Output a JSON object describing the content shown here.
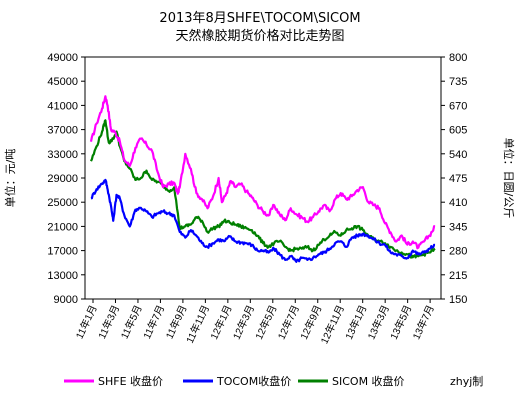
{
  "chart_data": {
    "type": "line",
    "title": "2013年8月SHFE\\TOCOM\\SICOM",
    "subtitle": "天然橡胶期货价格对比走势图",
    "ylabel_left": "单位：元/吨",
    "ylabel_right": "单位：日圆/公斤",
    "ylim_left": [
      9000,
      49000
    ],
    "yticks_left": [
      "49000",
      "45000",
      "41000",
      "37000",
      "33000",
      "29000",
      "25000",
      "21000",
      "17000",
      "13000",
      "9000"
    ],
    "ylim_right": [
      150,
      800
    ],
    "yticks_right": [
      "800",
      "735",
      "670",
      "605",
      "540",
      "475",
      "410",
      "345",
      "280",
      "215",
      "150"
    ],
    "x_tick_labels": [
      "11年1月",
      "11年3月",
      "11年5月",
      "11年7月",
      "11年9月",
      "11年11月",
      "12年1月",
      "12年3月",
      "12年5月",
      "12年7月",
      "12年9月",
      "12年11月",
      "13年1月",
      "13年3月",
      "13年5月",
      "13年7月"
    ],
    "grid": false,
    "legend_position": "bottom",
    "series": [
      {
        "name": "SHFE 收盘价",
        "axis": "left",
        "color": "#ff00ff",
        "x": [
          0,
          0.5,
          1.0,
          1.3,
          1.5,
          1.8,
          2.2,
          2.6,
          3.0,
          3.5,
          4.0,
          4.5,
          5.0,
          5.5,
          6.0,
          6.5,
          7.0,
          7.5,
          7.8,
          8.0,
          8.5,
          9.0,
          9.5,
          10.0,
          10.5,
          11.0,
          11.5,
          11.8,
          12.2,
          12.6,
          13.0,
          13.5,
          14.0,
          14.5,
          15.0,
          15.5,
          16.0,
          16.5,
          17.0,
          17.5,
          18.0,
          18.5,
          19.0,
          19.5,
          20.0,
          20.5,
          21.0,
          21.5,
          22.0,
          22.5,
          23.0,
          23.5,
          24.0,
          24.5,
          25.0,
          25.5,
          26.0,
          26.5,
          27.0,
          27.5,
          28.0,
          28.5,
          29.0,
          29.5,
          30.0,
          30.5,
          31.0
        ],
        "values": [
          35000,
          38000,
          40500,
          42500,
          41000,
          37000,
          36500,
          35000,
          32000,
          31000,
          34000,
          35500,
          34500,
          33500,
          30000,
          27500,
          28000,
          28200,
          26500,
          27500,
          33000,
          30500,
          26500,
          25500,
          24000,
          26000,
          29000,
          25000,
          26500,
          28500,
          27500,
          28000,
          26800,
          25800,
          24500,
          23500,
          22800,
          24500,
          23000,
          22000,
          24000,
          23000,
          22500,
          21800,
          22500,
          23500,
          24500,
          23500,
          25500,
          26500,
          25500,
          26000,
          27000,
          27500,
          25000,
          24500,
          24000,
          21500,
          20000,
          18500,
          19500,
          18000,
          18500,
          17500,
          18500,
          19500,
          21000
        ]
      },
      {
        "name": "TOCOM收盘价",
        "axis": "right",
        "color": "#0000ff",
        "x": [
          0,
          0.5,
          1.0,
          1.3,
          1.5,
          1.8,
          2.0,
          2.3,
          2.6,
          3.0,
          3.5,
          4.0,
          4.5,
          5.0,
          5.5,
          6.0,
          6.5,
          7.0,
          7.5,
          8.0,
          8.5,
          9.0,
          9.5,
          10.0,
          10.5,
          11.0,
          11.5,
          12.0,
          12.5,
          13.0,
          13.5,
          14.0,
          14.5,
          15.0,
          15.5,
          16.0,
          16.5,
          17.0,
          17.5,
          18.0,
          18.5,
          19.0,
          19.5,
          20.0,
          20.5,
          21.0,
          21.5,
          22.0,
          22.5,
          23.0,
          23.5,
          24.0,
          24.5,
          25.0,
          25.5,
          26.0,
          26.5,
          27.0,
          27.5,
          28.0,
          28.5,
          29.0,
          29.5,
          30.0,
          30.5,
          31.0
        ],
        "values": [
          420,
          445,
          460,
          470,
          445,
          400,
          360,
          430,
          420,
          375,
          345,
          390,
          395,
          385,
          370,
          380,
          385,
          380,
          375,
          330,
          315,
          335,
          320,
          300,
          290,
          300,
          310,
          305,
          318,
          305,
          302,
          300,
          295,
          280,
          280,
          275,
          285,
          270,
          255,
          265,
          250,
          260,
          255,
          260,
          270,
          275,
          285,
          300,
          305,
          290,
          315,
          320,
          325,
          320,
          310,
          300,
          295,
          275,
          270,
          265,
          260,
          280,
          270,
          275,
          285,
          295
        ]
      },
      {
        "name": "SICOM 收盘价",
        "axis": "right",
        "color": "#008000",
        "x": [
          0,
          0.5,
          1.0,
          1.3,
          1.6,
          2.0,
          2.3,
          2.6,
          3.0,
          3.5,
          4.0,
          4.5,
          5.0,
          5.5,
          6.0,
          6.5,
          7.0,
          7.5,
          8.0,
          8.5,
          9.0,
          9.5,
          10.0,
          10.5,
          11.0,
          11.5,
          12.0,
          12.5,
          13.0,
          13.5,
          14.0,
          14.5,
          15.0,
          15.5,
          16.0,
          16.5,
          17.0,
          17.5,
          18.0,
          18.5,
          19.0,
          19.5,
          20.0,
          20.5,
          21.0,
          21.5,
          22.0,
          22.5,
          23.0,
          23.5,
          24.0,
          24.5,
          25.0,
          25.5,
          26.0,
          26.5,
          27.0,
          27.5,
          28.0,
          28.5,
          29.0,
          29.5,
          30.0,
          30.5,
          31.0
        ],
        "values": [
          520,
          560,
          600,
          630,
          570,
          580,
          600,
          560,
          520,
          500,
          470,
          475,
          495,
          470,
          465,
          455,
          440,
          450,
          340,
          345,
          350,
          370,
          360,
          330,
          340,
          345,
          360,
          355,
          350,
          345,
          340,
          335,
          320,
          300,
          290,
          300,
          305,
          290,
          280,
          285,
          285,
          290,
          280,
          295,
          310,
          320,
          330,
          320,
          335,
          340,
          345,
          335,
          320,
          310,
          305,
          300,
          290,
          280,
          275,
          270,
          262,
          265,
          270,
          275,
          285
        ]
      }
    ],
    "credit": "zhyj制"
  }
}
